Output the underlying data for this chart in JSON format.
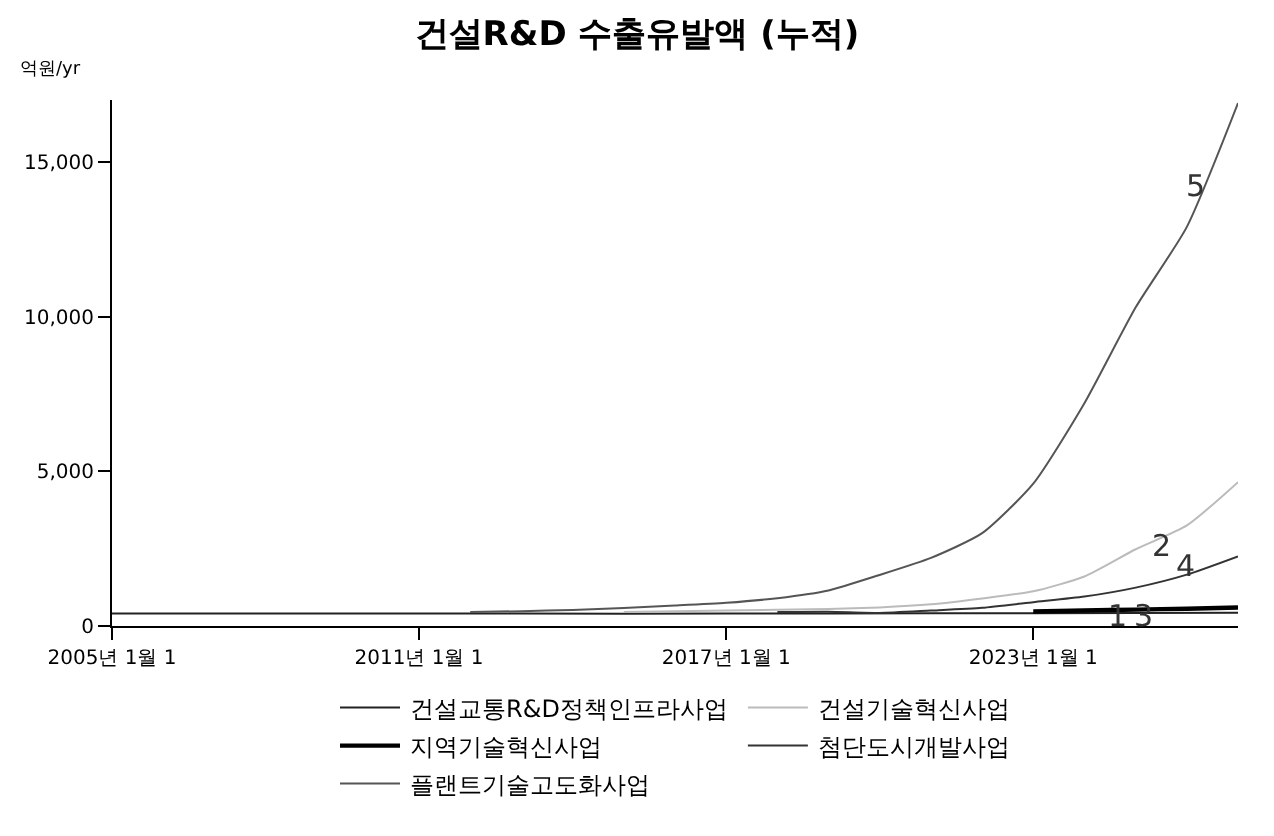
{
  "chart_data": {
    "type": "line",
    "title": "건설R&D 수출유발액 (누적)",
    "ylabel": "억원/yr",
    "xlim": [
      "2005-01-01",
      "2027-01-01"
    ],
    "ylim": [
      0,
      17000
    ],
    "xticks": [
      {
        "value": "2005-01-01",
        "label": "2005년 1월 1"
      },
      {
        "value": "2011-01-01",
        "label": "2011년 1월 1"
      },
      {
        "value": "2017-01-01",
        "label": "2017년 1월 1"
      },
      {
        "value": "2023-01-01",
        "label": "2023년 1월 1"
      }
    ],
    "yticks": [
      0,
      {
        "value": 5000,
        "label": "5,000"
      },
      {
        "value": 10000,
        "label": "10,000"
      },
      {
        "value": 15000,
        "label": "15,000"
      }
    ],
    "legend": "bottom",
    "marker": "none",
    "line_style": "solid",
    "series": [
      {
        "name": "건설교통R&D정책인프라사업",
        "color": "#222222",
        "x": [
          "2005",
          "2009",
          "2013",
          "2017",
          "2021",
          "2025",
          "2027"
        ],
        "values": [
          400,
          400,
          400,
          400,
          410,
          420,
          430
        ]
      },
      {
        "name": "건설기술혁신사업",
        "color": "#bbbbbb",
        "x": [
          "2015",
          "2017",
          "2019",
          "2020",
          "2021",
          "2022",
          "2023",
          "2024",
          "2025",
          "2026",
          "2027"
        ],
        "values": [
          450,
          500,
          550,
          600,
          700,
          890,
          1120,
          1600,
          2480,
          3250,
          4650
        ]
      },
      {
        "name": "지역기술혁신사업",
        "color": "#000000",
        "x": [
          "2023",
          "2024",
          "2025",
          "2026",
          "2027"
        ],
        "values": [
          470,
          500,
          530,
          560,
          600
        ]
      },
      {
        "name": "첨단도시개발사업",
        "color": "#333333",
        "x": [
          "2018",
          "2019",
          "2020",
          "2021",
          "2022",
          "2023",
          "2024",
          "2025",
          "2026",
          "2027"
        ],
        "values": [
          450,
          460,
          420,
          500,
          590,
          770,
          950,
          1240,
          1660,
          2250
        ]
      },
      {
        "name": "플랜트기술고도화사업",
        "color": "#555555",
        "x": [
          "2012",
          "2013",
          "2014",
          "2015",
          "2016",
          "2017",
          "2018",
          "2019",
          "2020",
          "2021",
          "2022",
          "2023",
          "2024",
          "2025",
          "2026",
          "2027"
        ],
        "values": [
          450,
          480,
          520,
          580,
          660,
          750,
          900,
          1150,
          1650,
          2200,
          3000,
          4600,
          7200,
          10300,
          12900,
          16900
        ]
      }
    ],
    "annotations": [
      {
        "text": "1",
        "x": "2024-09",
        "y": 350
      },
      {
        "text": "2",
        "x": "2025-07",
        "y": 2600
      },
      {
        "text": "3",
        "x": "2025-03",
        "y": 350
      },
      {
        "text": "4",
        "x": "2026-01",
        "y": 1950
      },
      {
        "text": "5",
        "x": "2026-03",
        "y": 14200
      }
    ]
  }
}
